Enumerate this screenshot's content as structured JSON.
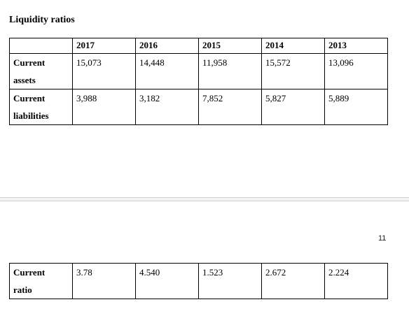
{
  "heading": "Liquidity ratios",
  "table": {
    "years": [
      "2017",
      "2016",
      "2015",
      "2014",
      "2013"
    ],
    "rows": [
      {
        "label_line1": "Current",
        "label_line2": "assets",
        "values": [
          "15,073",
          "14,448",
          "11,958",
          "15,572",
          "13,096"
        ]
      },
      {
        "label_line1": "Current",
        "label_line2": "liabilities",
        "values": [
          "3,988",
          "3,182",
          "7,852",
          "5,827",
          "5,889"
        ]
      }
    ]
  },
  "page_number": "11",
  "ratio_table": {
    "label_line1": "Current",
    "label_line2": "ratio",
    "values": [
      "3.78",
      "4.540",
      "1.523",
      "2.672",
      "2.224"
    ]
  }
}
